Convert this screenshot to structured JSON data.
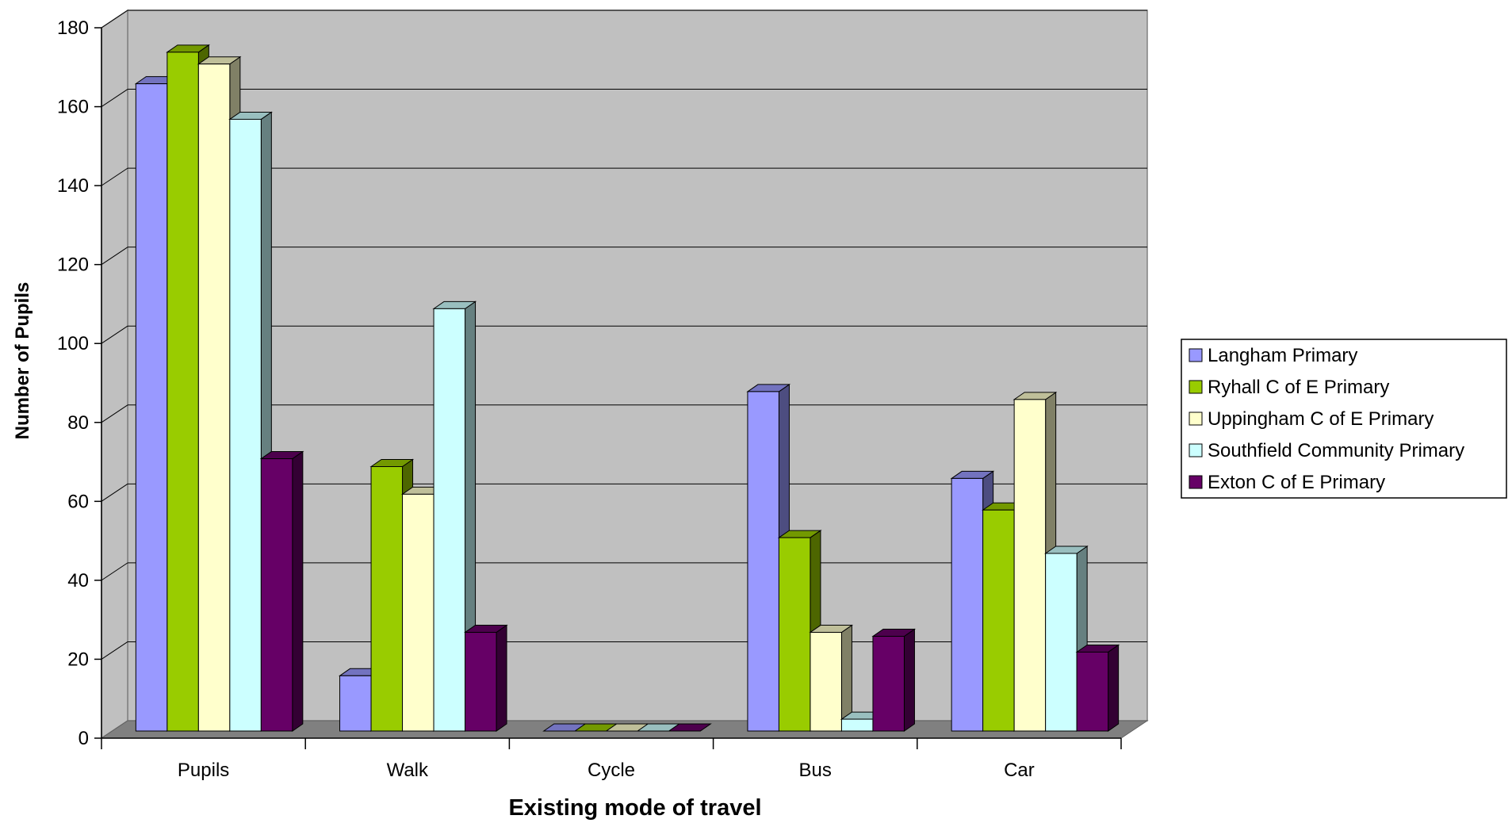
{
  "chart_data": {
    "type": "bar",
    "style": "3d-clustered-column",
    "xlabel": "Existing mode of travel",
    "ylabel": "Number of Pupils",
    "ylim": [
      0,
      180
    ],
    "yticks": [
      0,
      20,
      40,
      60,
      80,
      100,
      120,
      140,
      160,
      180
    ],
    "categories": [
      "Pupils",
      "Walk",
      "Cycle",
      "Bus",
      "Car"
    ],
    "series": [
      {
        "name": "Langham Primary",
        "color": "#9999FF",
        "values": [
          164,
          14,
          0,
          86,
          64
        ]
      },
      {
        "name": "Ryhall C of E Primary",
        "color": "#99CC00",
        "values": [
          172,
          67,
          0,
          49,
          56
        ]
      },
      {
        "name": "Uppingham C of E Primary",
        "color": "#FFFFCC",
        "values": [
          169,
          60,
          0,
          25,
          84
        ]
      },
      {
        "name": "Southfield Community Primary",
        "color": "#CCFFFF",
        "values": [
          155,
          107,
          0,
          3,
          45
        ]
      },
      {
        "name": "Exton C of E Primary",
        "color": "#660066",
        "values": [
          69,
          25,
          0,
          24,
          20
        ]
      }
    ],
    "grid": true,
    "legend_position": "right",
    "wall_color": "#C0C0C0",
    "floor_color": "#808080"
  }
}
